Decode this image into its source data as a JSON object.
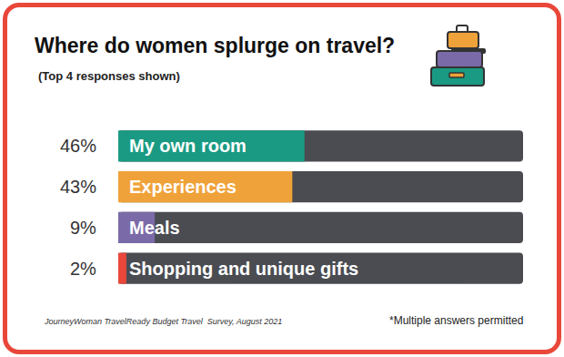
{
  "chart_data": {
    "type": "bar",
    "orientation": "horizontal",
    "title": "Where do women splurge on travel?",
    "subtitle": "(Top 4 responses shown)",
    "categories": [
      "My own room",
      "Experiences",
      "Meals",
      "Shopping and unique gifts"
    ],
    "values": [
      46,
      43,
      9,
      2
    ],
    "value_labels": [
      "46%",
      "43%",
      "9%",
      "2%"
    ],
    "colors": [
      "#1a9a82",
      "#f0a23a",
      "#7b6aa8",
      "#e8473a"
    ],
    "xlim": [
      0,
      100
    ],
    "data_labels": true,
    "tick_labels": false,
    "source": "JourneyWoman TravelReady Budget Travel  Survey, August 2021",
    "note": "*Multiple answers permitted"
  }
}
